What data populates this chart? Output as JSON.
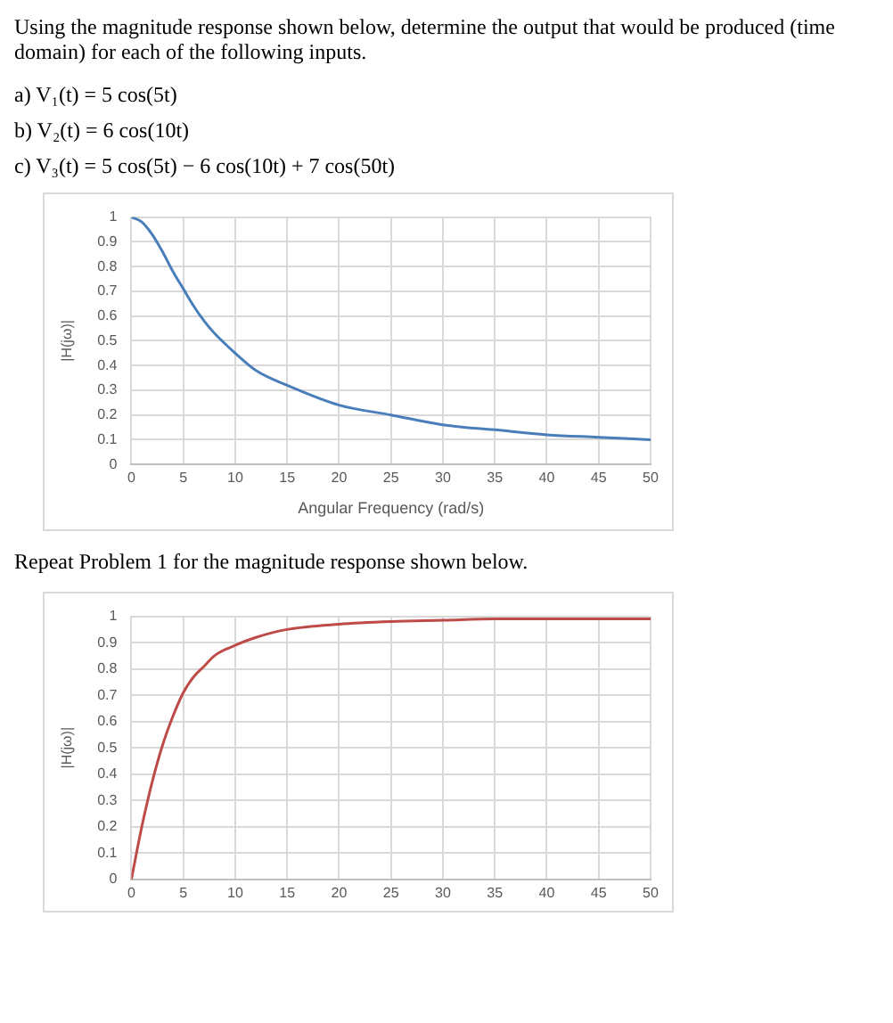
{
  "chart_data": [
    {
      "type": "line",
      "title": "Using the magnitude response shown below, determine the output that would be produced (time domain) for each of the following inputs.",
      "annotations": [
        "a) V₁(t) = 5 cos(5t)",
        "b) V₂(t) = 6 cos(10t)",
        "c) V₃(t) = 5 cos(5t) − 6 cos(10t) + 7 cos(50t)"
      ],
      "xlabel": "Angular Frequency (rad/s)",
      "ylabel": "|H(jω)|",
      "xlim": [
        0,
        50
      ],
      "ylim": [
        0,
        1
      ],
      "xticks": [
        0,
        5,
        10,
        15,
        20,
        25,
        30,
        35,
        40,
        45,
        50
      ],
      "yticks": [
        0,
        0.1,
        0.2,
        0.3,
        0.4,
        0.5,
        0.6,
        0.7,
        0.8,
        0.9,
        1
      ],
      "grid": true,
      "legend": false,
      "marker": "none",
      "line_style": "solid",
      "x": [
        0,
        1,
        2,
        3,
        4,
        5,
        6,
        7,
        8,
        10,
        12,
        15,
        20,
        25,
        30,
        35,
        40,
        45,
        50
      ],
      "series": [
        {
          "color": "#4a7ebb",
          "values": [
            1,
            0.98,
            0.93,
            0.86,
            0.78,
            0.71,
            0.64,
            0.58,
            0.53,
            0.45,
            0.38,
            0.32,
            0.24,
            0.2,
            0.16,
            0.14,
            0.12,
            0.11,
            0.1
          ]
        }
      ]
    },
    {
      "type": "line",
      "title": "Repeat Problem 1 for the magnitude response shown below.",
      "ylabel": "|H(jω)|",
      "xlim": [
        0,
        50
      ],
      "ylim": [
        0,
        1
      ],
      "xticks": [
        0,
        5,
        10,
        15,
        20,
        25,
        30,
        35,
        40,
        45,
        50
      ],
      "yticks": [
        0,
        0.1,
        0.2,
        0.3,
        0.4,
        0.5,
        0.6,
        0.7,
        0.8,
        0.9,
        1
      ],
      "grid": true,
      "legend": false,
      "marker": "none",
      "line_style": "solid",
      "x": [
        0,
        1,
        2,
        3,
        4,
        5,
        6,
        7,
        8,
        10,
        12,
        15,
        20,
        25,
        30,
        35,
        40,
        45,
        50
      ],
      "series": [
        {
          "color": "#be4b48",
          "values": [
            0,
            0.2,
            0.37,
            0.51,
            0.62,
            0.71,
            0.77,
            0.81,
            0.85,
            0.89,
            0.92,
            0.95,
            0.97,
            0.98,
            0.985,
            0.99,
            0.99,
            0.99,
            0.99
          ]
        }
      ]
    }
  ]
}
